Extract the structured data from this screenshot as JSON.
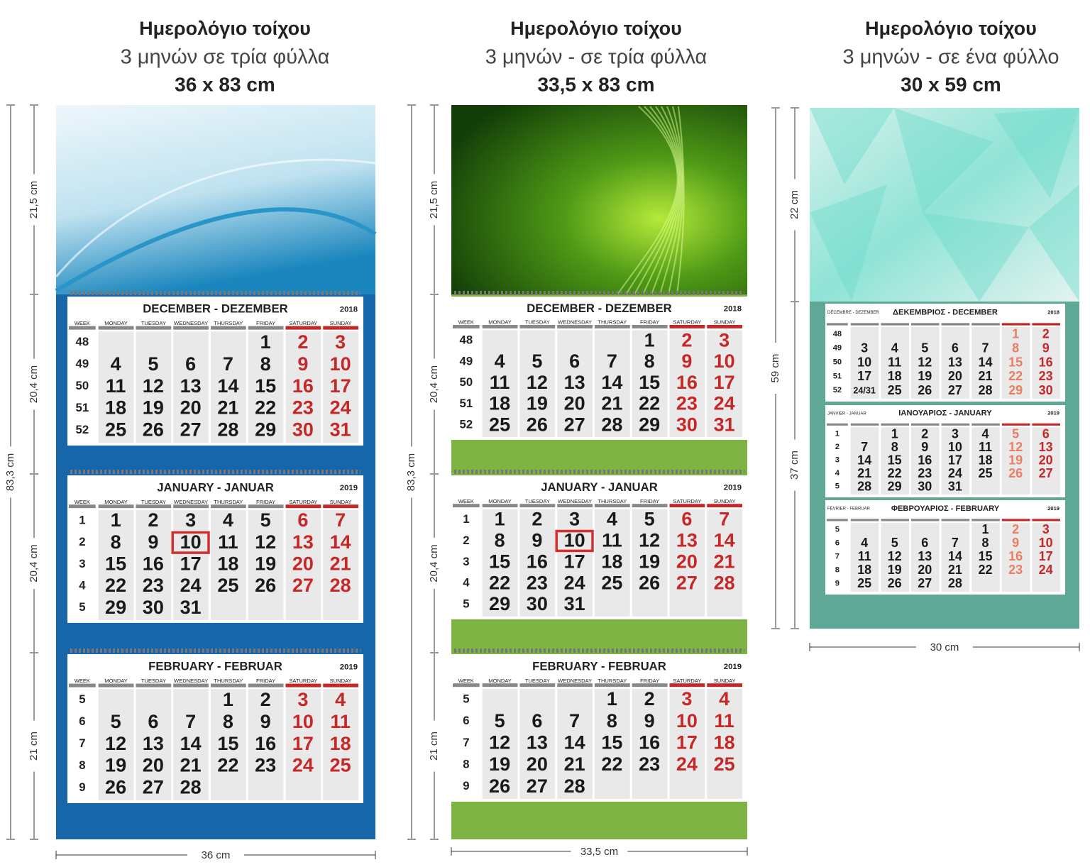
{
  "calendars": [
    {
      "title": "Ημερολόγιο τοίχου",
      "subtitle": "3 μηνών σε τρία φύλλα",
      "size": "36 x 83 cm",
      "height": "83,3 cm",
      "sections": [
        "21,5 cm",
        "20,4 cm",
        "20,4 cm",
        "21 cm"
      ],
      "width": "36 cm",
      "weekdays": [
        "WEEK",
        "MONDAY",
        "TUESDAY",
        "WEDNESDAY",
        "THURSDAY",
        "FRIDAY",
        "SATURDAY",
        "SUNDAY"
      ],
      "months": [
        {
          "name": "DECEMBER - DEZEMBER",
          "year": "2018",
          "weeks": [
            [
              48,
              null,
              null,
              null,
              null,
              1,
              2,
              3
            ],
            [
              49,
              4,
              5,
              6,
              7,
              8,
              9,
              10
            ],
            [
              50,
              11,
              12,
              13,
              14,
              15,
              16,
              17
            ],
            [
              51,
              18,
              19,
              20,
              21,
              22,
              23,
              24
            ],
            [
              52,
              25,
              26,
              27,
              28,
              29,
              30,
              31
            ]
          ]
        },
        {
          "name": "JANUARY - JANUAR",
          "year": "2019",
          "highlight_day": 10,
          "weeks": [
            [
              1,
              1,
              2,
              3,
              4,
              5,
              6,
              7
            ],
            [
              2,
              8,
              9,
              10,
              11,
              12,
              13,
              14
            ],
            [
              3,
              15,
              16,
              17,
              18,
              19,
              20,
              21
            ],
            [
              4,
              22,
              23,
              24,
              25,
              26,
              27,
              28
            ],
            [
              5,
              29,
              30,
              31,
              null,
              null,
              null,
              null
            ]
          ]
        },
        {
          "name": "FEBRUARY - FEBRUAR",
          "year": "2019",
          "weeks": [
            [
              5,
              null,
              null,
              null,
              1,
              2,
              3,
              4
            ],
            [
              6,
              5,
              6,
              7,
              8,
              9,
              10,
              11
            ],
            [
              7,
              12,
              13,
              14,
              15,
              16,
              17,
              18
            ],
            [
              8,
              19,
              20,
              21,
              22,
              23,
              24,
              25
            ],
            [
              9,
              26,
              27,
              28,
              null,
              null,
              null,
              null
            ]
          ]
        }
      ]
    },
    {
      "title": "Ημερολόγιο τοίχου",
      "subtitle": "3 μηνών - σε τρία φύλλα",
      "size": "33,5 x 83 cm",
      "height": "83,3 cm",
      "sections": [
        "21,5 cm",
        "20,4 cm",
        "20,4 cm",
        "21 cm"
      ],
      "width": "33,5 cm",
      "weekdays": [
        "WEEK",
        "MONDAY",
        "TUESDAY",
        "WEDNESDAY",
        "THURSDAY",
        "FRIDAY",
        "SATURDAY",
        "SUNDAY"
      ],
      "months": [
        {
          "name": "DECEMBER - DEZEMBER",
          "year": "2018",
          "weeks": [
            [
              48,
              null,
              null,
              null,
              null,
              1,
              2,
              3
            ],
            [
              49,
              4,
              5,
              6,
              7,
              8,
              9,
              10
            ],
            [
              50,
              11,
              12,
              13,
              14,
              15,
              16,
              17
            ],
            [
              51,
              18,
              19,
              20,
              21,
              22,
              23,
              24
            ],
            [
              52,
              25,
              26,
              27,
              28,
              29,
              30,
              31
            ]
          ]
        },
        {
          "name": "JANUARY - JANUAR",
          "year": "2019",
          "highlight_day": 10,
          "weeks": [
            [
              1,
              1,
              2,
              3,
              4,
              5,
              6,
              7
            ],
            [
              2,
              8,
              9,
              10,
              11,
              12,
              13,
              14
            ],
            [
              3,
              15,
              16,
              17,
              18,
              19,
              20,
              21
            ],
            [
              4,
              22,
              23,
              24,
              25,
              26,
              27,
              28
            ],
            [
              5,
              29,
              30,
              31,
              null,
              null,
              null,
              null
            ]
          ]
        },
        {
          "name": "FEBRUARY - FEBRUAR",
          "year": "2019",
          "weeks": [
            [
              5,
              null,
              null,
              null,
              1,
              2,
              3,
              4
            ],
            [
              6,
              5,
              6,
              7,
              8,
              9,
              10,
              11
            ],
            [
              7,
              12,
              13,
              14,
              15,
              16,
              17,
              18
            ],
            [
              8,
              19,
              20,
              21,
              22,
              23,
              24,
              25
            ],
            [
              9,
              26,
              27,
              28,
              null,
              null,
              null,
              null
            ]
          ]
        }
      ]
    },
    {
      "title": "Ημερολόγιο τοίχου",
      "subtitle": "3 μηνών - σε ένα φύλλο",
      "size": "30 x 59 cm",
      "height": "59 cm",
      "sections": [
        "22 cm",
        "37 cm"
      ],
      "width": "30 cm",
      "months": [
        {
          "alt_name": "DÉCEMBRE - DEZEMBER",
          "name": "ΔΕΚΕΜΒΡΙΟΣ - DECEMBER",
          "year": "2018",
          "weeks": [
            [
              48,
              null,
              null,
              null,
              null,
              null,
              1,
              2
            ],
            [
              49,
              3,
              4,
              5,
              6,
              7,
              8,
              9
            ],
            [
              50,
              10,
              11,
              12,
              13,
              14,
              15,
              16
            ],
            [
              51,
              17,
              18,
              19,
              20,
              21,
              22,
              23
            ],
            [
              52,
              "24/31",
              25,
              26,
              27,
              28,
              29,
              30
            ]
          ]
        },
        {
          "alt_name": "JANVIER - JANUAR",
          "name": "ΙΑΝΟΥΑΡΙΟΣ - JANUARY",
          "year": "2019",
          "weeks": [
            [
              1,
              null,
              1,
              2,
              3,
              4,
              5,
              6
            ],
            [
              2,
              7,
              8,
              9,
              10,
              11,
              12,
              13
            ],
            [
              3,
              14,
              15,
              16,
              17,
              18,
              19,
              20
            ],
            [
              4,
              21,
              22,
              23,
              24,
              25,
              26,
              27
            ],
            [
              5,
              28,
              29,
              30,
              31,
              null,
              null,
              null
            ]
          ]
        },
        {
          "alt_name": "FÉVRIER - FEBRUAR",
          "name": "ΦΕΒΡΟΥΑΡΙΟΣ - FEBRUARY",
          "year": "2019",
          "weeks": [
            [
              5,
              null,
              null,
              null,
              null,
              1,
              2,
              3
            ],
            [
              6,
              4,
              5,
              6,
              7,
              8,
              9,
              10
            ],
            [
              7,
              11,
              12,
              13,
              14,
              15,
              16,
              17
            ],
            [
              8,
              18,
              19,
              20,
              21,
              22,
              23,
              24
            ],
            [
              9,
              25,
              26,
              27,
              28,
              null,
              null,
              null
            ]
          ]
        }
      ]
    }
  ]
}
